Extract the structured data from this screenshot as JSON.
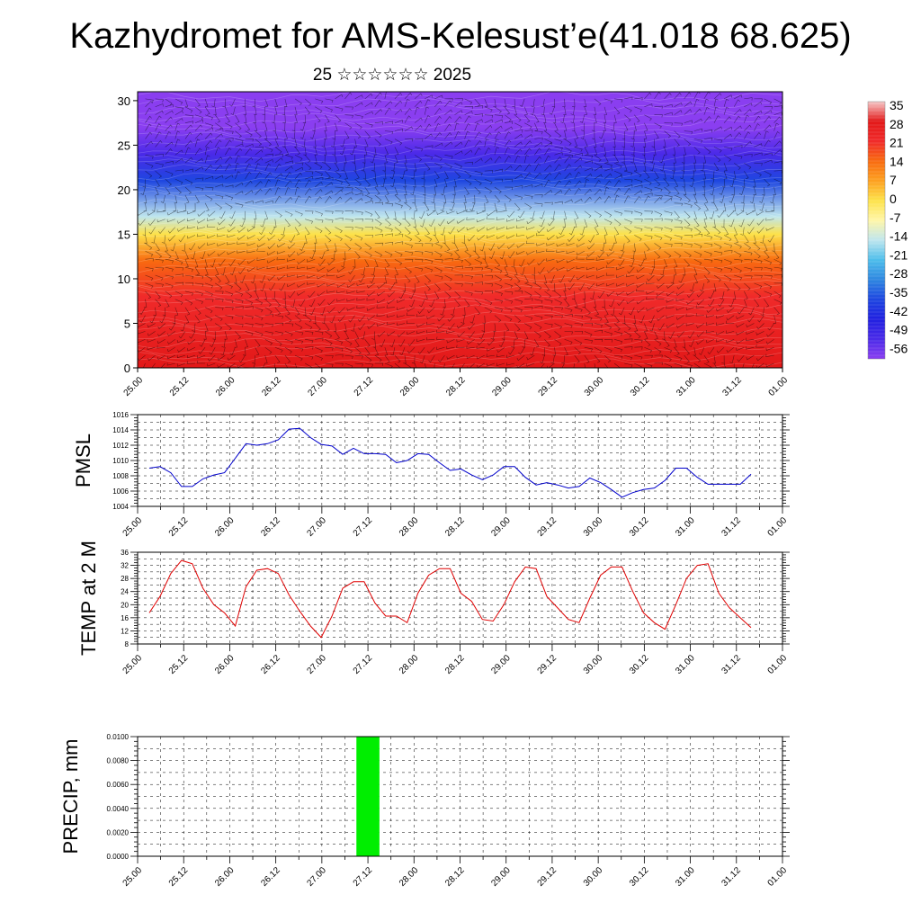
{
  "header": {
    "title": "Kazhydromet for AMS-Kelesust’e(41.018 68.625)",
    "subtitle": "25 ☆☆☆☆☆☆ 2025"
  },
  "x_tick_labels": [
    "25.00",
    "25.12",
    "26.00",
    "26.12",
    "27.00",
    "27.12",
    "28.00",
    "28.12",
    "29.00",
    "29.12",
    "30.00",
    "30.12",
    "31.00",
    "31.12",
    "01.00"
  ],
  "chart_data": [
    {
      "type": "heatmap",
      "name": "temperature-cross-section",
      "x_ticks": [
        "25.00",
        "25.12",
        "26.00",
        "26.12",
        "27.00",
        "27.12",
        "28.00",
        "28.12",
        "29.00",
        "29.12",
        "30.00",
        "30.12",
        "31.00",
        "31.12",
        "01.00"
      ],
      "y_ticks": [
        "0",
        "5",
        "10",
        "15",
        "20",
        "25",
        "30"
      ],
      "ylim": [
        0,
        31
      ],
      "xlim": [
        0,
        168
      ],
      "colorbar_labels": [
        "35",
        "28",
        "21",
        "14",
        "7",
        "0",
        "-7",
        "-14",
        "-21",
        "-28",
        "-35",
        "-42",
        "-49",
        "-56"
      ],
      "colorbar_colors": [
        "#f6c7c7",
        "#e21818",
        "#f02a2a",
        "#f86a10",
        "#fda020",
        "#fde24a",
        "#fff6a8",
        "#bfe6ee",
        "#4dbdeb",
        "#2e86e0",
        "#1e46e0",
        "#2020e0",
        "#4a2ae8",
        "#8a3ef0"
      ],
      "layer_profile": [
        {
          "height": 0,
          "value": 30
        },
        {
          "height": 8,
          "value": 24
        },
        {
          "height": 12,
          "value": 14
        },
        {
          "height": 15,
          "value": 2
        },
        {
          "height": 17,
          "value": -14
        },
        {
          "height": 21,
          "value": -35
        },
        {
          "height": 24,
          "value": -49
        },
        {
          "height": 27,
          "value": -56
        },
        {
          "height": 31,
          "value": -56
        }
      ]
    },
    {
      "type": "line",
      "name": "pmsl",
      "ylabel": "PMSL",
      "ylim": [
        1004,
        1016
      ],
      "y_ticks": [
        "1004",
        "1006",
        "1008",
        "1010",
        "1012",
        "1014",
        "1016"
      ],
      "x_ticks": [
        "25.00",
        "25.12",
        "26.00",
        "26.12",
        "27.00",
        "27.12",
        "28.00",
        "28.12",
        "29.00",
        "29.12",
        "30.00",
        "30.12",
        "31.00",
        "31.12",
        "01.00"
      ],
      "x": [
        0,
        3,
        6,
        9,
        12,
        15,
        18,
        21,
        24,
        27,
        30,
        33,
        36,
        39,
        42,
        45,
        48,
        51,
        54,
        57,
        60,
        63,
        66,
        69,
        72,
        75,
        78,
        81,
        84,
        87,
        90,
        93,
        96,
        99,
        102,
        105,
        108,
        111,
        114,
        117,
        120,
        123,
        126,
        129,
        132,
        135,
        138,
        141,
        144,
        147,
        150,
        153,
        156,
        159,
        162,
        165,
        168
      ],
      "values": [
        1009,
        1009.2,
        1008.4,
        1006.6,
        1006.6,
        1007.6,
        1008.1,
        1008.4,
        1010.3,
        1012.2,
        1012,
        1012.2,
        1012.7,
        1014.1,
        1014.2,
        1013,
        1012.1,
        1011.9,
        1010.8,
        1011.6,
        1010.9,
        1010.9,
        1010.8,
        1009.7,
        1010,
        1010.9,
        1010.8,
        1009.7,
        1008.7,
        1008.9,
        1008.1,
        1007.5,
        1008.1,
        1009.2,
        1009.2,
        1007.8,
        1006.8,
        1007.1,
        1006.8,
        1006.4,
        1006.6,
        1007.7,
        1007.1,
        1006.2,
        1005.2,
        1005.8,
        1006.2,
        1006.4,
        1007.4,
        1009,
        1009,
        1007.8,
        1006.9,
        1006.9,
        1006.9,
        1006.9,
        1008.2
      ],
      "color": "#0000cc"
    },
    {
      "type": "line",
      "name": "temp-2m",
      "ylabel": "TEMP at 2 M",
      "ylim": [
        8,
        36
      ],
      "y_ticks": [
        "8",
        "12",
        "16",
        "20",
        "24",
        "28",
        "32",
        "36"
      ],
      "x_ticks": [
        "25.00",
        "25.12",
        "26.00",
        "26.12",
        "27.00",
        "27.12",
        "28.00",
        "28.12",
        "29.00",
        "29.12",
        "30.00",
        "30.12",
        "31.00",
        "31.12",
        "01.00"
      ],
      "x": [
        0,
        3,
        6,
        9,
        12,
        15,
        18,
        21,
        24,
        27,
        30,
        33,
        36,
        39,
        42,
        45,
        48,
        51,
        54,
        57,
        60,
        63,
        66,
        69,
        72,
        75,
        78,
        81,
        84,
        87,
        90,
        93,
        96,
        99,
        102,
        105,
        108,
        111,
        114,
        117,
        120,
        123,
        126,
        129,
        132,
        135,
        138,
        141,
        144,
        147,
        150,
        153,
        156,
        159,
        162,
        165,
        168
      ],
      "values": [
        17.5,
        22.5,
        29.5,
        33.5,
        32.5,
        25,
        20,
        17.5,
        13.5,
        25.5,
        30.5,
        31,
        29.5,
        23,
        18,
        13.5,
        10,
        16.5,
        25,
        27,
        27,
        20.5,
        16.5,
        16.5,
        14.5,
        23.5,
        29,
        31,
        31,
        23.5,
        21,
        15.5,
        15,
        20,
        27,
        31.5,
        31,
        22.5,
        19,
        15.5,
        14.5,
        22,
        29,
        31.5,
        31.5,
        24,
        17.5,
        14.5,
        12.5,
        20,
        28,
        32,
        32.5,
        23.5,
        19,
        16,
        13
      ],
      "color": "#e00000"
    },
    {
      "type": "bar",
      "name": "precip",
      "ylabel": "PRECIP, mm",
      "ylim": [
        0,
        0.01
      ],
      "y_ticks": [
        "0.0000",
        "0.0020",
        "0.0040",
        "0.0060",
        "0.0080",
        "0.0100"
      ],
      "x_ticks": [
        "25.00",
        "25.12",
        "26.00",
        "26.12",
        "27.00",
        "27.12",
        "28.00",
        "28.12",
        "29.00",
        "29.12",
        "30.00",
        "30.12",
        "31.00",
        "31.12",
        "01.00"
      ],
      "bars": [
        {
          "x_start": 57,
          "x_end": 63,
          "value": 0.01
        }
      ],
      "color": "#00ee00"
    }
  ]
}
